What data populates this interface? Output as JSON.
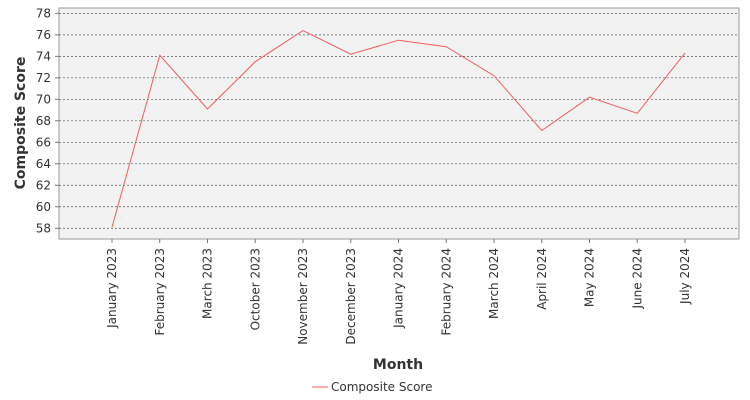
{
  "chart_data": {
    "type": "line",
    "title": "",
    "xlabel": "Month",
    "ylabel": "Composite Score",
    "categories": [
      "January 2023",
      "February 2023",
      "March 2023",
      "October 2023",
      "November 2023",
      "December 2023",
      "January 2024",
      "February 2024",
      "March 2024",
      "April 2024",
      "May 2024",
      "June 2024",
      "July 2024"
    ],
    "series": [
      {
        "name": "Composite Score",
        "color": "#f25c5c",
        "values": [
          58.1,
          74.1,
          69.1,
          73.5,
          76.4,
          74.2,
          75.5,
          74.9,
          72.2,
          67.1,
          70.2,
          68.7,
          74.3
        ]
      }
    ],
    "ylim": [
      57,
      78.5
    ],
    "yticks": [
      58,
      60,
      62,
      64,
      66,
      68,
      70,
      72,
      74,
      76,
      78
    ],
    "grid": true,
    "legend_position": "bottom-center",
    "plot_background": "#f2f2f2"
  }
}
